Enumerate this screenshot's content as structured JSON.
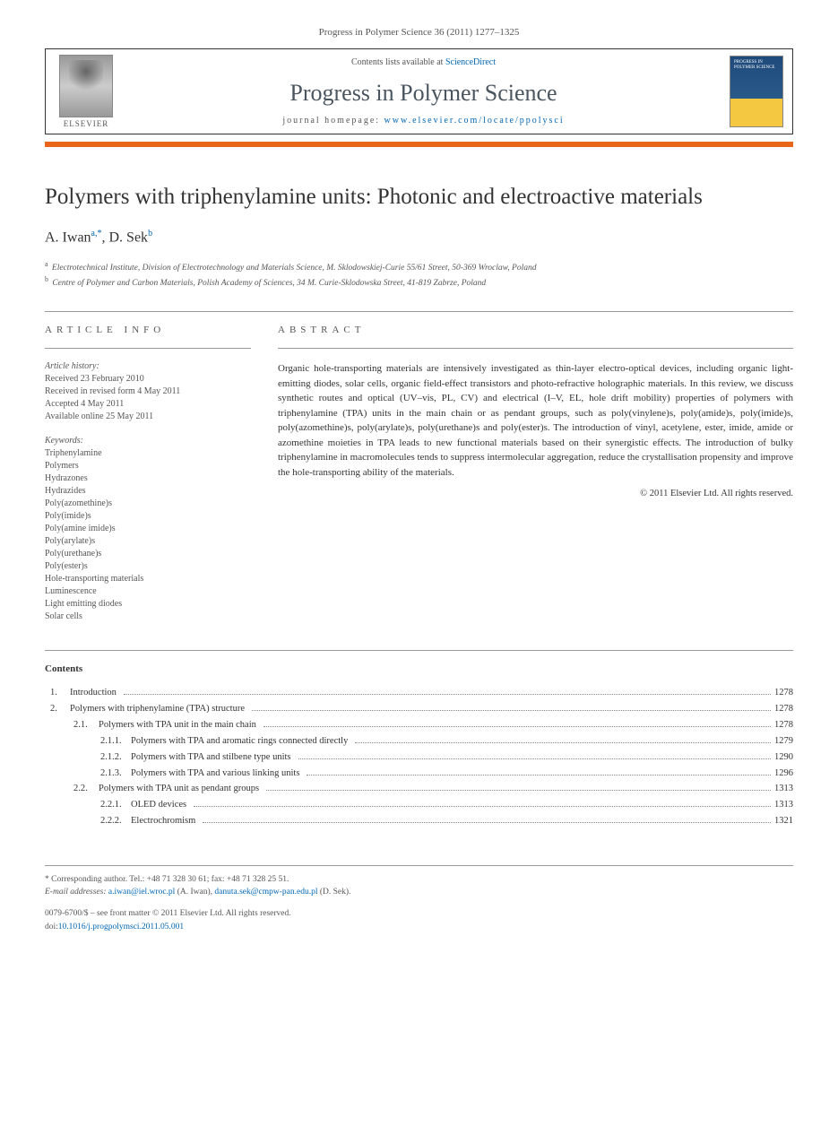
{
  "journal_ref": "Progress in Polymer Science 36 (2011) 1277–1325",
  "header": {
    "publisher": "ELSEVIER",
    "contents_prefix": "Contents lists available at ",
    "contents_link": "ScienceDirect",
    "journal_name": "Progress in Polymer Science",
    "homepage_prefix": "journal homepage: ",
    "homepage_link": "www.elsevier.com/locate/ppolysci"
  },
  "title": "Polymers with triphenylamine units: Photonic and electroactive materials",
  "authors": [
    {
      "name": "A. Iwan",
      "marks": "a,*"
    },
    {
      "name": "D. Sek",
      "marks": "b"
    }
  ],
  "author_joiner": ", ",
  "affiliations": [
    {
      "mark": "a",
      "text": "Electrotechnical Institute, Division of Electrotechnology and Materials Science, M. Sklodowskiej-Curie 55/61 Street, 50-369 Wroclaw, Poland"
    },
    {
      "mark": "b",
      "text": "Centre of Polymer and Carbon Materials, Polish Academy of Sciences, 34 M. Curie-Sklodowska Street, 41-819 Zabrze, Poland"
    }
  ],
  "article_info": {
    "heading": "ARTICLE INFO",
    "history_label": "Article history:",
    "history": [
      "Received 23 February 2010",
      "Received in revised form 4 May 2011",
      "Accepted 4 May 2011",
      "Available online 25 May 2011"
    ],
    "keywords_label": "Keywords:",
    "keywords": [
      "Triphenylamine",
      "Polymers",
      "Hydrazones",
      "Hydrazides",
      "Poly(azomethine)s",
      "Poly(imide)s",
      "Poly(amine imide)s",
      "Poly(arylate)s",
      "Poly(urethane)s",
      "Poly(ester)s",
      "Hole-transporting materials",
      "Luminescence",
      "Light emitting diodes",
      "Solar cells"
    ]
  },
  "abstract": {
    "heading": "ABSTRACT",
    "text": "Organic hole-transporting materials are intensively investigated as thin-layer electro-optical devices, including organic light-emitting diodes, solar cells, organic field-effect transistors and photo-refractive holographic materials. In this review, we discuss synthetic routes and optical (UV–vis, PL, CV) and electrical (I–V, EL, hole drift mobility) properties of polymers with triphenylamine (TPA) units in the main chain or as pendant groups, such as poly(vinylene)s, poly(amide)s, poly(imide)s, poly(azomethine)s, poly(arylate)s, poly(urethane)s and poly(ester)s. The introduction of vinyl, acetylene, ester, imide, amide or azomethine moieties in TPA leads to new functional materials based on their synergistic effects. The introduction of bulky triphenylamine in macromolecules tends to suppress intermolecular aggregation, reduce the crystallisation propensity and improve the hole-transporting ability of the materials.",
    "copyright": "© 2011 Elsevier Ltd. All rights reserved."
  },
  "contents": {
    "heading": "Contents",
    "items": [
      {
        "level": 0,
        "num": "1.",
        "label": "Introduction",
        "page": "1278"
      },
      {
        "level": 0,
        "num": "2.",
        "label": "Polymers with triphenylamine (TPA) structure",
        "page": "1278"
      },
      {
        "level": 1,
        "num": "2.1.",
        "label": "Polymers with TPA unit in the main chain",
        "page": "1278"
      },
      {
        "level": 2,
        "num": "2.1.1.",
        "label": "Polymers with TPA and aromatic rings connected directly",
        "page": "1279"
      },
      {
        "level": 2,
        "num": "2.1.2.",
        "label": "Polymers with TPA and stilbene type units",
        "page": "1290"
      },
      {
        "level": 2,
        "num": "2.1.3.",
        "label": "Polymers with TPA and various linking units",
        "page": "1296"
      },
      {
        "level": 1,
        "num": "2.2.",
        "label": "Polymers with TPA unit as pendant groups",
        "page": "1313"
      },
      {
        "level": 2,
        "num": "2.2.1.",
        "label": "OLED devices",
        "page": "1313"
      },
      {
        "level": 2,
        "num": "2.2.2.",
        "label": "Electrochromism",
        "page": "1321"
      }
    ]
  },
  "footnotes": {
    "corr_mark": "*",
    "corr_text": "Corresponding author. Tel.: +48 71 328 30 61; fax: +48 71 328 25 51.",
    "email_label": "E-mail addresses: ",
    "emails": [
      {
        "addr": "a.iwan@iel.wroc.pl",
        "who": "(A. Iwan)"
      },
      {
        "addr": "danuta.sek@cmpw-pan.edu.pl",
        "who": "(D. Sek)"
      }
    ]
  },
  "footer": {
    "issn_line": "0079-6700/$ – see front matter © 2011 Elsevier Ltd. All rights reserved.",
    "doi_label": "doi:",
    "doi": "10.1016/j.progpolymsci.2011.05.001"
  },
  "colors": {
    "orange_bar": "#e8661b",
    "link": "#0066b3",
    "journal_title": "#4a5560",
    "text": "#333333",
    "muted": "#555555"
  }
}
